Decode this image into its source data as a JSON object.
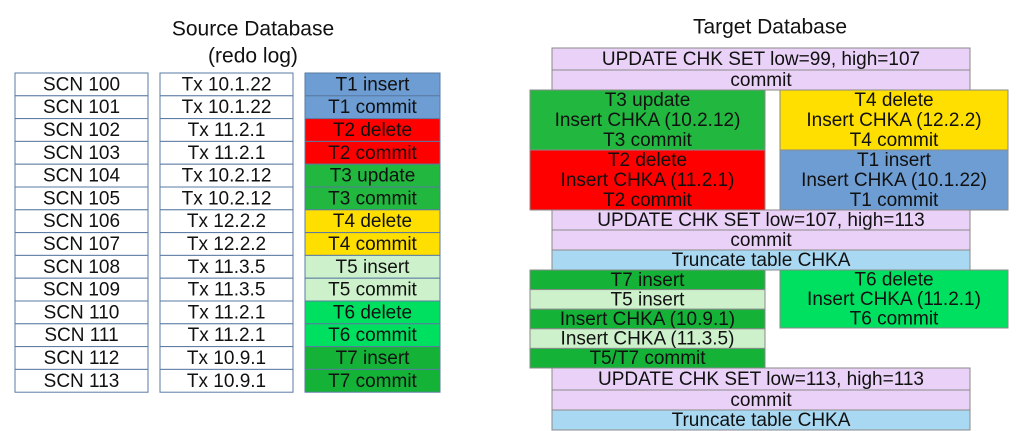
{
  "source": {
    "title": "Source Database",
    "subtitle": "(redo log)",
    "rows": [
      {
        "scn": "SCN 100",
        "tx": "Tx 10.1.22",
        "op": "T1 insert",
        "color": "#6d9dd2"
      },
      {
        "scn": "SCN 101",
        "tx": "Tx 10.1.22",
        "op": "T1 commit",
        "color": "#6d9dd2"
      },
      {
        "scn": "SCN 102",
        "tx": "Tx 11.2.1",
        "op": "T2 delete",
        "color": "#ff0000"
      },
      {
        "scn": "SCN 103",
        "tx": "Tx 11.2.1",
        "op": "T2 commit",
        "color": "#ff0000"
      },
      {
        "scn": "SCN 104",
        "tx": "Tx 10.2.12",
        "op": "T3 update",
        "color": "#22b73e"
      },
      {
        "scn": "SCN 105",
        "tx": "Tx 10.2.12",
        "op": "T3 commit",
        "color": "#22b73e"
      },
      {
        "scn": "SCN 106",
        "tx": "Tx 12.2.2",
        "op": "T4 delete",
        "color": "#ffdf00"
      },
      {
        "scn": "SCN 107",
        "tx": "Tx 12.2.2",
        "op": "T4 commit",
        "color": "#ffdf00"
      },
      {
        "scn": "SCN 108",
        "tx": "Tx 11.3.5",
        "op": "T5 insert",
        "color": "#cdf2cb"
      },
      {
        "scn": "SCN 109",
        "tx": "Tx 11.3.5",
        "op": "T5 commit",
        "color": "#cdf2cb"
      },
      {
        "scn": "SCN 110",
        "tx": "Tx 11.2.1",
        "op": "T6 delete",
        "color": "#00e060"
      },
      {
        "scn": "SCN 111",
        "tx": "Tx 11.2.1",
        "op": "T6 commit",
        "color": "#00e060"
      },
      {
        "scn": "SCN 112",
        "tx": "Tx 10.9.1",
        "op": "T7 insert",
        "color": "#14b338"
      },
      {
        "scn": "SCN 113",
        "tx": "Tx 10.9.1",
        "op": "T7 commit",
        "color": "#14b338"
      }
    ]
  },
  "target": {
    "title": "Target Database",
    "blocks": [
      {
        "lines": [
          "UPDATE CHK SET low=99, high=107"
        ],
        "color": "#ead1f7"
      },
      {
        "lines": [
          "commit"
        ],
        "color": "#ead1f7"
      },
      {
        "lines": [
          "T3 update",
          "Insert CHKA (10.2.12)",
          "T3 commit"
        ],
        "color": "#22b73e"
      },
      {
        "lines": [
          "T2 delete",
          "Insert CHKA (11.2.1)",
          "T2 commit"
        ],
        "color": "#ff0000"
      },
      {
        "lines": [
          "T4 delete",
          "Insert CHKA (12.2.2)",
          "T4 commit"
        ],
        "color": "#ffdf00"
      },
      {
        "lines": [
          "T1 insert",
          "Insert CHKA (10.1.22)",
          "T1 commit"
        ],
        "color": "#6d9dd2"
      },
      {
        "lines": [
          "UPDATE CHK SET low=107, high=113"
        ],
        "color": "#ead1f7"
      },
      {
        "lines": [
          "commit"
        ],
        "color": "#ead1f7"
      },
      {
        "lines": [
          "Truncate table CHKA"
        ],
        "color": "#a9d9f2"
      },
      {
        "lines": [
          "T7 insert"
        ],
        "color": "#14b338"
      },
      {
        "lines": [
          "T5 insert"
        ],
        "color": "#cdf2cb"
      },
      {
        "lines": [
          "Insert CHKA (10.9.1)"
        ],
        "color": "#14b338"
      },
      {
        "lines": [
          "Insert CHKA (11.3.5)"
        ],
        "color": "#cdf2cb"
      },
      {
        "lines": [
          "T5/T7 commit"
        ],
        "color": "#14b338"
      },
      {
        "lines": [
          "T6 delete",
          "Insert CHKA (11.2.1)",
          "T6 commit"
        ],
        "color": "#00e060"
      },
      {
        "lines": [
          "UPDATE CHK SET low=113, high=113"
        ],
        "color": "#ead1f7"
      },
      {
        "lines": [
          "commit"
        ],
        "color": "#ead1f7"
      },
      {
        "lines": [
          "Truncate table CHKA"
        ],
        "color": "#a9d9f2"
      }
    ]
  }
}
